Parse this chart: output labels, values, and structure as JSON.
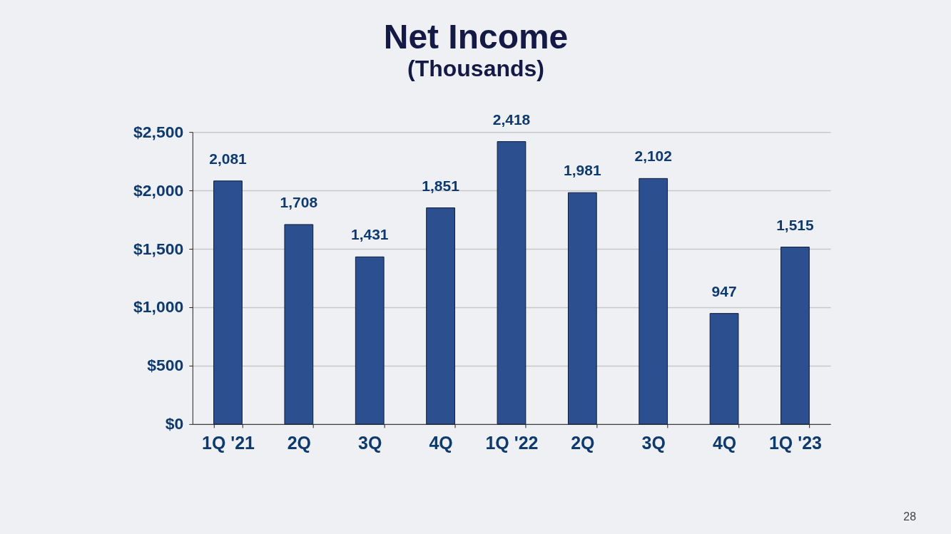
{
  "chart_data": {
    "type": "bar",
    "title": "Net Income",
    "subtitle": "(Thousands)",
    "categories": [
      "1Q '21",
      "2Q",
      "3Q",
      "4Q",
      "1Q '22",
      "2Q",
      "3Q",
      "4Q",
      "1Q '23"
    ],
    "values": [
      2081,
      1708,
      1431,
      1851,
      2418,
      1981,
      2102,
      947,
      1515
    ],
    "value_labels": [
      "2,081",
      "1,708",
      "1,431",
      "1,851",
      "2,418",
      "1,981",
      "2,102",
      "947",
      "1,515"
    ],
    "color": "#2c4f8f",
    "ylim": [
      0,
      2500
    ],
    "yticks": [
      {
        "value": 0,
        "label": "$0"
      },
      {
        "value": 500,
        "label": "$500"
      },
      {
        "value": 1000,
        "label": "$1,000"
      },
      {
        "value": 1500,
        "label": "$1,500"
      },
      {
        "value": 2000,
        "label": "$2,000"
      },
      {
        "value": 2500,
        "label": "$2,500"
      }
    ],
    "grid": "y",
    "annotations": [
      "28"
    ]
  }
}
